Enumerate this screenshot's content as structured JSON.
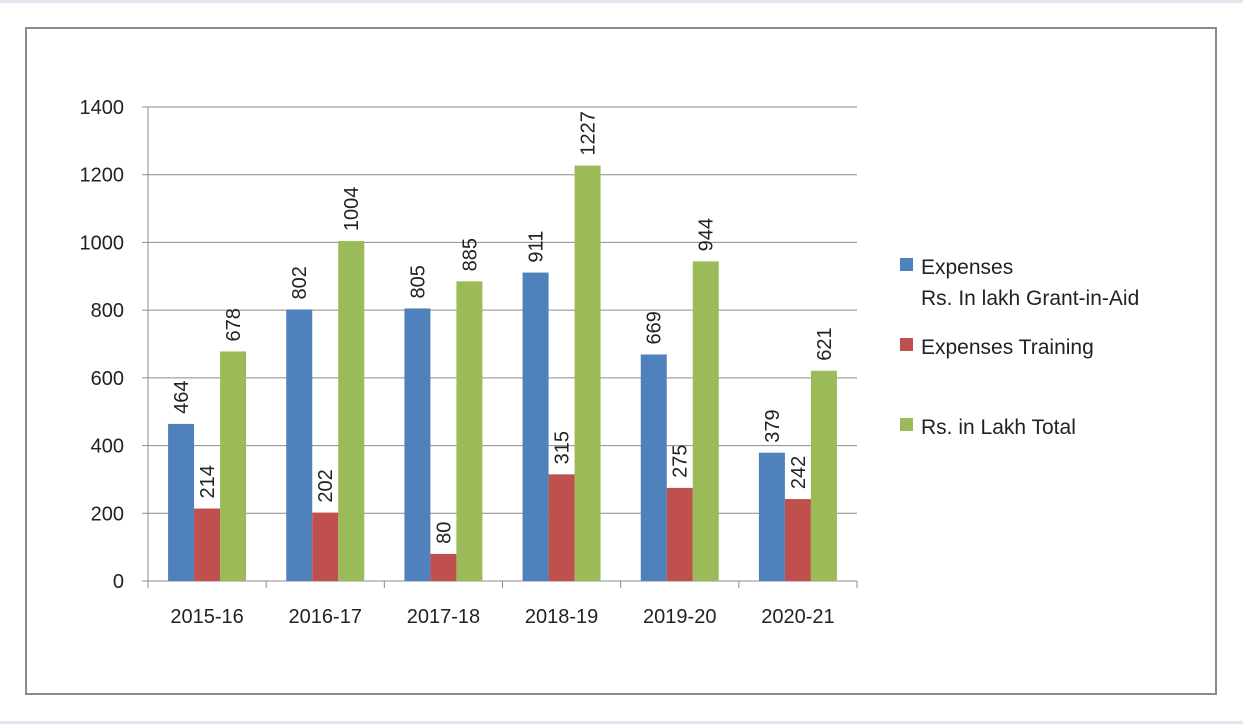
{
  "chart_data": {
    "type": "bar",
    "categories": [
      "2015-16",
      "2016-17",
      "2017-18",
      "2018-19",
      "2019-20",
      "2020-21"
    ],
    "series": [
      {
        "name": "Expenses Rs. In lakh  Grant-in-Aid",
        "legend_lines": [
          "Expenses",
          "Rs. In lakh  Grant-in-Aid"
        ],
        "color": "#4f81bd",
        "values": [
          464,
          802,
          805,
          911,
          669,
          379
        ]
      },
      {
        "name": "Expenses Training",
        "legend_lines": [
          "Expenses Training"
        ],
        "color": "#c0504d",
        "values": [
          214,
          202,
          80,
          315,
          275,
          242
        ]
      },
      {
        "name": "Rs. in Lakh Total",
        "legend_lines": [
          "Rs. in Lakh Total"
        ],
        "color": "#9bbb59",
        "values": [
          678,
          1004,
          885,
          1227,
          944,
          621
        ]
      }
    ],
    "y_ticks": [
      "0",
      "200",
      "400",
      "600",
      "800",
      "1000",
      "1200",
      "1400"
    ],
    "ylim": [
      0,
      1400
    ],
    "title": "",
    "xlabel": "",
    "ylabel": "",
    "grid": true,
    "legend_position": "right"
  }
}
